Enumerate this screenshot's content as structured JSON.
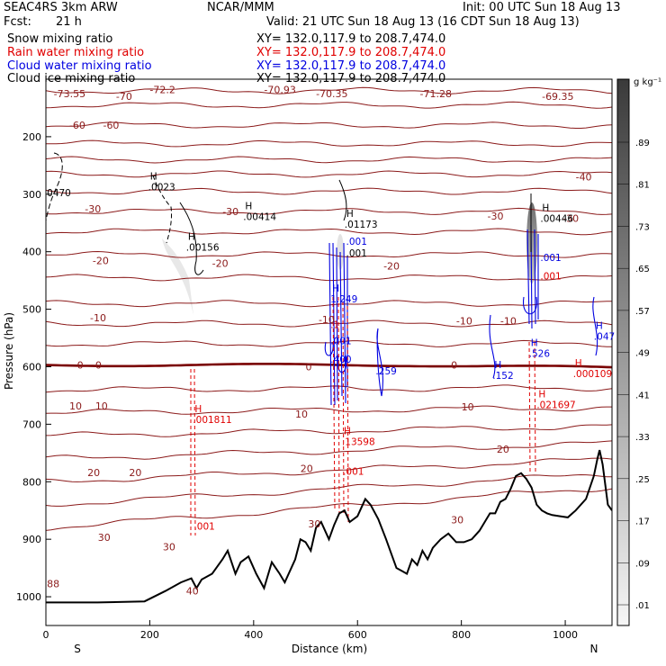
{
  "header": {
    "model": "SEAC4RS  3km ARW",
    "org": "NCAR/MMM",
    "init": "Init: 00 UTC Sun 18 Aug 13",
    "fcst_label": "Fcst:",
    "fcst_value": "21 h",
    "valid": "Valid: 21 UTC Sun 18 Aug 13 (16 CDT Sun 18 Aug 13)"
  },
  "fields": [
    {
      "name": "Snow mixing ratio",
      "xy": "XY= 132.0,117.9 to 208.7,474.0",
      "color": "#000000"
    },
    {
      "name": "Rain water mixing ratio",
      "xy": "XY= 132.0,117.9 to 208.7,474.0",
      "color": "#e00000"
    },
    {
      "name": "Cloud water mixing ratio",
      "xy": "XY= 132.0,117.9 to 208.7,474.0",
      "color": "#0000e0"
    },
    {
      "name": "Cloud ice mixing ratio",
      "xy": "XY= 132.0,117.9 to 208.7,474.0",
      "color": "#000000"
    }
  ],
  "chart_data": {
    "type": "cross-section",
    "xlabel": "Distance (km)",
    "ylabel": "Pressure (hPa)",
    "xlim": [
      0,
      1090
    ],
    "ylim": [
      1050,
      100
    ],
    "x_ticks": [
      0,
      200,
      400,
      600,
      800,
      1000
    ],
    "y_ticks": [
      200,
      300,
      400,
      500,
      600,
      700,
      800,
      900,
      1000
    ],
    "end_labels": {
      "left": "S",
      "right": "N"
    },
    "colorbar": {
      "units": "g kg⁻¹",
      "labels": [
        ".01",
        ".09",
        ".17",
        ".25",
        ".33",
        ".41",
        ".49",
        ".57",
        ".65",
        ".73",
        ".81",
        ".89"
      ]
    },
    "terrain": [
      [
        0,
        1010
      ],
      [
        100,
        1010
      ],
      [
        190,
        1008
      ],
      [
        230,
        990
      ],
      [
        260,
        975
      ],
      [
        280,
        968
      ],
      [
        290,
        985
      ],
      [
        300,
        970
      ],
      [
        320,
        960
      ],
      [
        340,
        935
      ],
      [
        350,
        920
      ],
      [
        365,
        960
      ],
      [
        375,
        940
      ],
      [
        390,
        930
      ],
      [
        405,
        960
      ],
      [
        420,
        985
      ],
      [
        435,
        940
      ],
      [
        450,
        960
      ],
      [
        460,
        975
      ],
      [
        470,
        955
      ],
      [
        480,
        935
      ],
      [
        490,
        900
      ],
      [
        500,
        905
      ],
      [
        510,
        920
      ],
      [
        520,
        880
      ],
      [
        530,
        870
      ],
      [
        545,
        900
      ],
      [
        555,
        875
      ],
      [
        565,
        855
      ],
      [
        575,
        850
      ],
      [
        585,
        870
      ],
      [
        600,
        860
      ],
      [
        615,
        830
      ],
      [
        625,
        840
      ],
      [
        640,
        865
      ],
      [
        655,
        900
      ],
      [
        665,
        925
      ],
      [
        675,
        950
      ],
      [
        685,
        955
      ],
      [
        695,
        960
      ],
      [
        705,
        935
      ],
      [
        715,
        945
      ],
      [
        725,
        920
      ],
      [
        735,
        935
      ],
      [
        745,
        915
      ],
      [
        760,
        900
      ],
      [
        775,
        890
      ],
      [
        790,
        905
      ],
      [
        805,
        905
      ],
      [
        820,
        900
      ],
      [
        835,
        885
      ],
      [
        845,
        870
      ],
      [
        855,
        855
      ],
      [
        865,
        855
      ],
      [
        875,
        835
      ],
      [
        885,
        830
      ],
      [
        895,
        812
      ],
      [
        905,
        790
      ],
      [
        915,
        785
      ],
      [
        925,
        795
      ],
      [
        935,
        810
      ],
      [
        945,
        840
      ],
      [
        955,
        850
      ],
      [
        965,
        855
      ],
      [
        975,
        858
      ],
      [
        990,
        860
      ],
      [
        1005,
        862
      ],
      [
        1020,
        850
      ],
      [
        1040,
        830
      ],
      [
        1055,
        790
      ],
      [
        1062,
        760
      ],
      [
        1066,
        745
      ],
      [
        1072,
        770
      ],
      [
        1082,
        840
      ],
      [
        1090,
        850
      ]
    ],
    "temperature_labels": [
      {
        "x": 15,
        "p": 125,
        "text": "-73.55"
      },
      {
        "x": 135,
        "p": 130,
        "text": "-70"
      },
      {
        "x": 200,
        "p": 118,
        "text": "-72.2"
      },
      {
        "x": 420,
        "p": 118,
        "text": "-70.93"
      },
      {
        "x": 520,
        "p": 125,
        "text": "-70.35"
      },
      {
        "x": 720,
        "p": 125,
        "text": "-71.28"
      },
      {
        "x": 955,
        "p": 130,
        "text": "-69.35"
      },
      {
        "x": 45,
        "p": 180,
        "text": "-60"
      },
      {
        "x": 110,
        "p": 180,
        "text": "-60"
      },
      {
        "x": 1020,
        "p": 270,
        "text": "-40"
      },
      {
        "x": 75,
        "p": 325,
        "text": "-30"
      },
      {
        "x": 340,
        "p": 330,
        "text": "-30"
      },
      {
        "x": 850,
        "p": 338,
        "text": "-30"
      },
      {
        "x": 995,
        "p": 342,
        "text": "-30"
      },
      {
        "x": 90,
        "p": 415,
        "text": "-20"
      },
      {
        "x": 320,
        "p": 420,
        "text": "-20"
      },
      {
        "x": 650,
        "p": 425,
        "text": "-20"
      },
      {
        "x": 85,
        "p": 515,
        "text": "-10"
      },
      {
        "x": 525,
        "p": 518,
        "text": "-10"
      },
      {
        "x": 790,
        "p": 520,
        "text": "-10"
      },
      {
        "x": 875,
        "p": 520,
        "text": "-10"
      },
      {
        "x": 60,
        "p": 597,
        "text": "0"
      },
      {
        "x": 95,
        "p": 597,
        "text": "0"
      },
      {
        "x": 500,
        "p": 600,
        "text": "0"
      },
      {
        "x": 780,
        "p": 597,
        "text": "0"
      },
      {
        "x": 45,
        "p": 668,
        "text": "10"
      },
      {
        "x": 95,
        "p": 668,
        "text": "10"
      },
      {
        "x": 480,
        "p": 682,
        "text": "10"
      },
      {
        "x": 800,
        "p": 670,
        "text": "10"
      },
      {
        "x": 80,
        "p": 784,
        "text": "20"
      },
      {
        "x": 160,
        "p": 784,
        "text": "20"
      },
      {
        "x": 490,
        "p": 777,
        "text": "20"
      },
      {
        "x": 868,
        "p": 743,
        "text": "20"
      },
      {
        "x": 100,
        "p": 897,
        "text": "30"
      },
      {
        "x": 225,
        "p": 913,
        "text": "30"
      },
      {
        "x": 505,
        "p": 873,
        "text": "30"
      },
      {
        "x": 780,
        "p": 866,
        "text": "30"
      },
      {
        "x": 270,
        "p": 990,
        "text": "40"
      },
      {
        "x": 2,
        "p": 977,
        "text": "88"
      }
    ],
    "markers": [
      {
        "x": 2,
        "p": 300,
        "text": "0470",
        "color": "#000000",
        "h": false
      },
      {
        "x": 197,
        "p": 290,
        "text": ".0023",
        "color": "#000000",
        "h": true
      },
      {
        "x": 270,
        "p": 395,
        "text": ".00156",
        "color": "#000000",
        "h": true
      },
      {
        "x": 380,
        "p": 342,
        "text": ".00414",
        "color": "#000000",
        "h": true
      },
      {
        "x": 575,
        "p": 355,
        "text": ".01173",
        "color": "#000000",
        "h": true
      },
      {
        "x": 578,
        "p": 385,
        "text": ".001",
        "color": "#0000e0",
        "h": false
      },
      {
        "x": 578,
        "p": 405,
        "text": ".001",
        "color": "#000000",
        "h": false
      },
      {
        "x": 952,
        "p": 345,
        "text": ".00446",
        "color": "#000000",
        "h": true
      },
      {
        "x": 952,
        "p": 413,
        "text": ".001",
        "color": "#0000e0",
        "h": false
      },
      {
        "x": 952,
        "p": 445,
        "text": ".001",
        "color": "#e00000",
        "h": false
      },
      {
        "x": 548,
        "p": 485,
        "text": "1.249",
        "color": "#0000e0",
        "h": true
      },
      {
        "x": 548,
        "p": 530,
        "text": ".1",
        "color": "#e00000",
        "h": false
      },
      {
        "x": 548,
        "p": 558,
        "text": ".001",
        "color": "#0000e0",
        "h": false
      },
      {
        "x": 548,
        "p": 590,
        "text": ".400",
        "color": "#0000e0",
        "h": false
      },
      {
        "x": 635,
        "p": 610,
        "text": ".259",
        "color": "#0000e0",
        "h": false
      },
      {
        "x": 860,
        "p": 618,
        "text": ".152",
        "color": "#0000e0",
        "h": true
      },
      {
        "x": 930,
        "p": 580,
        "text": ".526",
        "color": "#0000e0",
        "h": true
      },
      {
        "x": 1055,
        "p": 550,
        "text": ".047",
        "color": "#0000e0",
        "h": true
      },
      {
        "x": 1015,
        "p": 615,
        "text": ".000109",
        "color": "#e00000",
        "h": true
      },
      {
        "x": 945,
        "p": 669,
        "text": ".021697",
        "color": "#e00000",
        "h": true
      },
      {
        "x": 283,
        "p": 695,
        "text": ".001811",
        "color": "#e00000",
        "h": true
      },
      {
        "x": 570,
        "p": 733,
        "text": ".13598",
        "color": "#e00000",
        "h": true
      },
      {
        "x": 572,
        "p": 785,
        "text": ".001",
        "color": "#e00000",
        "h": false
      },
      {
        "x": 285,
        "p": 880,
        "text": ".001",
        "color": "#e00000",
        "h": false
      }
    ]
  }
}
